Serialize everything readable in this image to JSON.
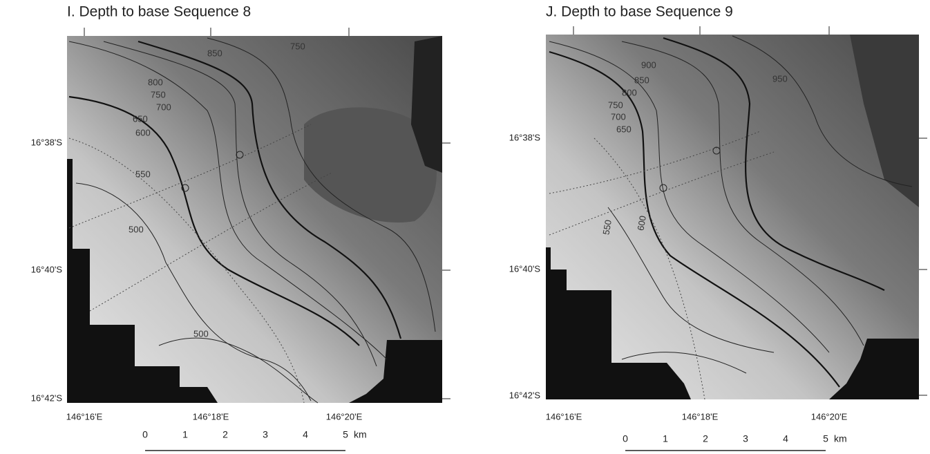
{
  "panels": [
    {
      "title": "I. Depth to base Sequence 8",
      "y_labels": [
        "16°38'S",
        "16°40'S",
        "16°42'S"
      ],
      "x_labels": [
        "146°16'E",
        "146°18'E",
        "146°20'E"
      ],
      "contour_labels": [
        "850",
        "800",
        "750",
        "700",
        "650",
        "600",
        "550",
        "500",
        "500",
        "750"
      ],
      "scale": {
        "ticks": [
          "0",
          "1",
          "2",
          "3",
          "4",
          "5"
        ],
        "unit": "km"
      }
    },
    {
      "title": "J. Depth to base Sequence 9",
      "y_labels": [
        "16°38'S",
        "16°40'S",
        "16°42'S"
      ],
      "x_labels": [
        "146°16'E",
        "146°18'E",
        "146°20'E"
      ],
      "contour_labels": [
        "900",
        "850",
        "800",
        "750",
        "700",
        "650",
        "550",
        "600",
        "950"
      ],
      "scale": {
        "ticks": [
          "0",
          "1",
          "2",
          "3",
          "4",
          "5"
        ],
        "unit": "km"
      }
    }
  ]
}
